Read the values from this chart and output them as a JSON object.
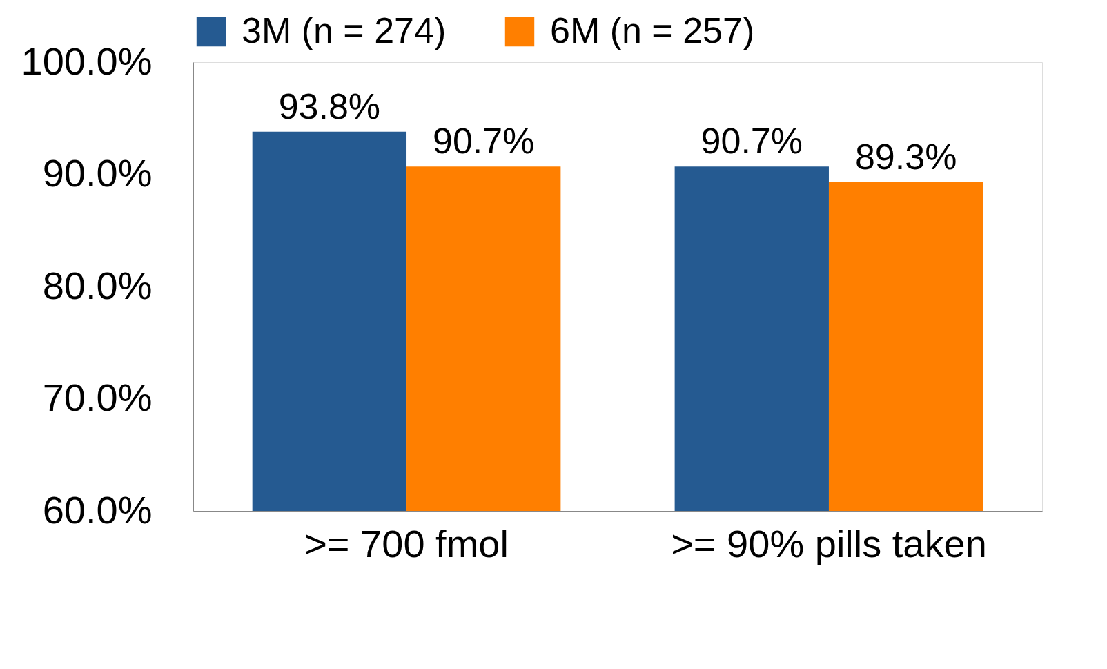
{
  "chart_data": {
    "type": "bar",
    "categories": [
      ">= 700 fmol",
      ">= 90% pills taken"
    ],
    "series": [
      {
        "name": "3M (n = 274)",
        "color": "#255a91",
        "values": [
          93.8,
          90.7
        ],
        "value_labels": [
          "93.8%",
          "90.7%"
        ]
      },
      {
        "name": "6M (n = 257)",
        "color": "#ff7f00",
        "values": [
          90.7,
          89.3
        ],
        "value_labels": [
          "90.7%",
          "89.3%"
        ]
      }
    ],
    "ylim": [
      60,
      100
    ],
    "yticks": [
      {
        "value": 60,
        "label": "60.0%"
      },
      {
        "value": 70,
        "label": "70.0%"
      },
      {
        "value": 80,
        "label": "80.0%"
      },
      {
        "value": 90,
        "label": "90.0%"
      },
      {
        "value": 100,
        "label": "100.0%"
      }
    ],
    "legend": "top",
    "grid": false
  }
}
